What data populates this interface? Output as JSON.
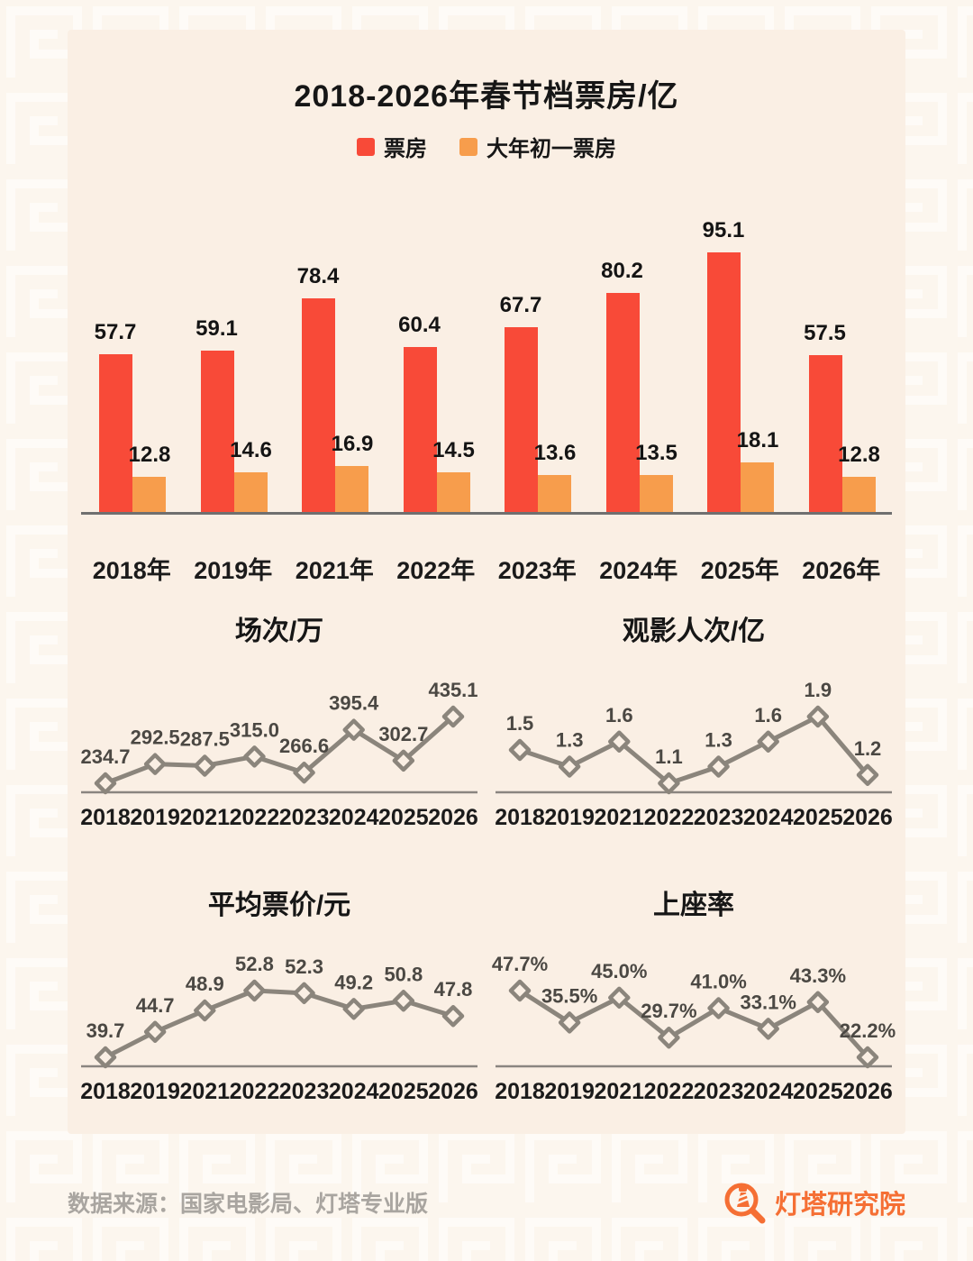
{
  "page": {
    "title": "2018-2026年春节档票房/亿",
    "footer": {
      "source": "数据来源：国家电影局、灯塔专业版",
      "brand": "灯塔研究院"
    },
    "colors": {
      "main_red": "#F84A38",
      "secondary_orange": "#F79D4C",
      "card_bg": "#FAEFE4",
      "page_bg": "#FCF6EE",
      "line_gray": "#8B857C",
      "brand_orange": "#F56F34"
    }
  },
  "chart_data": [
    {
      "type": "bar",
      "title": "2018-2026年春节档票房/亿",
      "unit": "亿",
      "categories": [
        "2018年",
        "2019年",
        "2021年",
        "2022年",
        "2023年",
        "2024年",
        "2025年",
        "2026年"
      ],
      "series": [
        {
          "name": "票房",
          "color": "#F84A38",
          "values": [
            57.7,
            59.1,
            78.4,
            60.4,
            67.7,
            80.2,
            95.1,
            57.5
          ],
          "labels": [
            "57.7",
            "59.1",
            "78.4",
            "60.4",
            "67.7",
            "80.2",
            "95.1",
            "57.5"
          ]
        },
        {
          "name": "大年初一票房",
          "color": "#F79D4C",
          "values": [
            12.8,
            14.6,
            16.9,
            14.5,
            13.6,
            13.5,
            18.1,
            12.8
          ],
          "labels": [
            "12.8",
            "14.6",
            "16.9",
            "14.5",
            "13.6",
            "13.5",
            "18.1",
            "12.8"
          ]
        }
      ],
      "ylim": [
        0,
        112
      ],
      "grid": false,
      "legend_position": "top"
    },
    {
      "type": "line",
      "title": "场次/万",
      "x": [
        "2018",
        "2019",
        "2021",
        "2022",
        "2023",
        "2024",
        "2025",
        "2026"
      ],
      "values": [
        234.7,
        292.5,
        287.5,
        315.0,
        266.6,
        395.4,
        302.7,
        435.1
      ],
      "labels": [
        "234.7",
        "292.5",
        "287.5",
        "315.0",
        "266.6",
        "395.4",
        "302.7",
        "435.1"
      ],
      "grid": false
    },
    {
      "type": "line",
      "title": "观影人次/亿",
      "x": [
        "2018",
        "2019",
        "2021",
        "2022",
        "2023",
        "2024",
        "2025",
        "2026"
      ],
      "values": [
        1.5,
        1.3,
        1.6,
        1.1,
        1.3,
        1.6,
        1.9,
        1.2
      ],
      "labels": [
        "1.5",
        "1.3",
        "1.6",
        "1.1",
        "1.3",
        "1.6",
        "1.9",
        "1.2"
      ],
      "grid": false
    },
    {
      "type": "line",
      "title": "平均票价/元",
      "x": [
        "2018",
        "2019",
        "2021",
        "2022",
        "2023",
        "2024",
        "2025",
        "2026"
      ],
      "values": [
        39.7,
        44.7,
        48.9,
        52.8,
        52.3,
        49.2,
        50.8,
        47.8
      ],
      "labels": [
        "39.7",
        "44.7",
        "48.9",
        "52.8",
        "52.3",
        "49.2",
        "50.8",
        "47.8"
      ],
      "grid": false
    },
    {
      "type": "line",
      "title": "上座率",
      "x": [
        "2018",
        "2019",
        "2021",
        "2022",
        "2023",
        "2024",
        "2025",
        "2026"
      ],
      "values": [
        47.7,
        35.5,
        45.0,
        29.7,
        41.0,
        33.1,
        43.3,
        22.2
      ],
      "labels": [
        "47.7%",
        "35.5%",
        "45.0%",
        "29.7%",
        "41.0%",
        "33.1%",
        "43.3%",
        "22.2%"
      ],
      "grid": false
    }
  ]
}
